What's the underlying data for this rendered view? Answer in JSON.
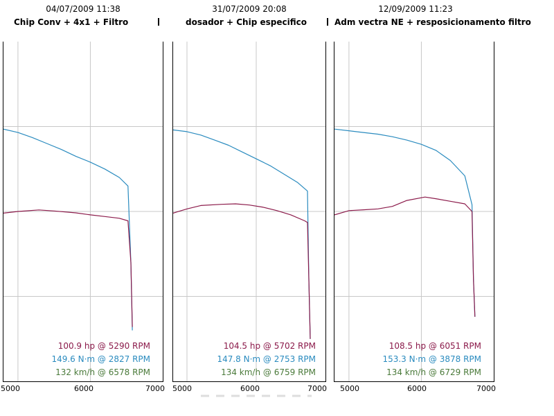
{
  "colors": {
    "hp": "#8b1a4a",
    "torque": "#2a8bbf",
    "speed": "#4a7a3a",
    "grid": "#c8c8c8"
  },
  "chart_data": [
    {
      "type": "line",
      "date": "04/07/2009 11:38",
      "title": "Chip Conv + 4x1 + Filtro",
      "x_ticks": [
        "5000",
        "6000",
        "7000"
      ],
      "xlim": [
        4800,
        7000
      ],
      "stats": {
        "hp": "100.9 hp @ 5290 RPM",
        "torque": "149.6 N·m @ 2827 RPM",
        "speed": "132 km/h @ 6578 RPM"
      },
      "series": [
        {
          "name": "torque",
          "x": [
            4800,
            5000,
            5200,
            5400,
            5600,
            5800,
            6000,
            6200,
            6400,
            6520,
            6560,
            6580
          ],
          "y": [
            148.5,
            146.5,
            143.5,
            140.0,
            136.5,
            132.5,
            129.0,
            125.0,
            120.0,
            115.0,
            70.0,
            30.0
          ]
        },
        {
          "name": "hp",
          "x": [
            4800,
            5000,
            5290,
            5500,
            5800,
            6000,
            6200,
            6400,
            6520,
            6560,
            6580
          ],
          "y": [
            99.0,
            100.0,
            100.9,
            100.3,
            99.2,
            98.0,
            97.0,
            96.0,
            94.5,
            70.0,
            32.0
          ]
        }
      ]
    },
    {
      "type": "line",
      "date": "31/07/2009 20:08",
      "title": "dosador + Chip especifico",
      "x_ticks": [
        "5000",
        "6000",
        "7000"
      ],
      "xlim": [
        4800,
        7000
      ],
      "stats": {
        "hp": "104.5 hp @ 5702 RPM",
        "torque": "147.8 N·m @ 2753 RPM",
        "speed": "134 km/h @ 6759 RPM"
      },
      "series": [
        {
          "name": "torque",
          "x": [
            4800,
            5000,
            5200,
            5400,
            5600,
            5800,
            6000,
            6200,
            6400,
            6600,
            6740,
            6760,
            6780
          ],
          "y": [
            148.0,
            147.0,
            145.0,
            142.0,
            139.0,
            135.0,
            131.0,
            127.0,
            122.0,
            117.0,
            112.0,
            60.0,
            25.0
          ]
        },
        {
          "name": "hp",
          "x": [
            4800,
            5000,
            5200,
            5500,
            5702,
            5900,
            6100,
            6300,
            6500,
            6700,
            6740,
            6760,
            6780
          ],
          "y": [
            99.0,
            101.5,
            103.5,
            104.2,
            104.5,
            103.8,
            102.5,
            100.5,
            98.0,
            94.5,
            93.5,
            60.0,
            25.0
          ]
        }
      ]
    },
    {
      "type": "line",
      "date": "12/09/2009 11:23",
      "title": "Adm vectra NE + resposicionamento filtro",
      "x_ticks": [
        "5000",
        "6000",
        "7000"
      ],
      "xlim": [
        4800,
        7000
      ],
      "stats": {
        "hp": "108.5 hp @ 6051 RPM",
        "torque": "153.3 N·m @ 3878 RPM",
        "speed": "134 km/h @ 6729 RPM"
      },
      "series": [
        {
          "name": "torque",
          "x": [
            4800,
            5000,
            5200,
            5400,
            5600,
            5800,
            6000,
            6200,
            6400,
            6600,
            6700,
            6720,
            6740
          ],
          "y": [
            148.5,
            147.5,
            146.5,
            145.5,
            144.0,
            142.0,
            139.5,
            136.0,
            130.0,
            121.0,
            104.0,
            60.0,
            38.0
          ]
        },
        {
          "name": "hp",
          "x": [
            4800,
            5000,
            5200,
            5400,
            5600,
            5800,
            6051,
            6200,
            6400,
            6600,
            6700,
            6720,
            6740
          ],
          "y": [
            98.0,
            100.5,
            101.0,
            101.5,
            103.0,
            106.5,
            108.5,
            107.5,
            106.0,
            104.5,
            100.0,
            60.0,
            38.0
          ]
        }
      ]
    }
  ]
}
